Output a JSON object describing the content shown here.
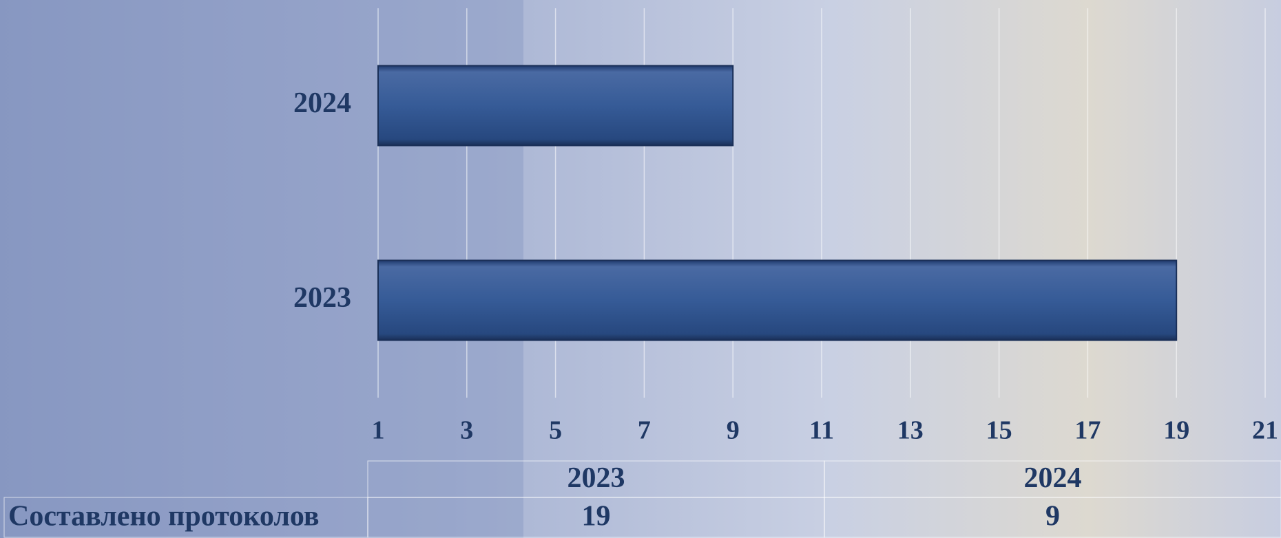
{
  "chart_data": {
    "type": "hbar",
    "categories": [
      "2023",
      "2024"
    ],
    "values": [
      19,
      9
    ],
    "color": "#2f5597",
    "xlim": [
      1,
      21
    ],
    "xticks": [
      1,
      3,
      5,
      7,
      9,
      11,
      13,
      15,
      17,
      19,
      21
    ],
    "grid": true,
    "table": {
      "columns": [
        "2023",
        "2024"
      ],
      "rows": [
        {
          "label": "Составлено протоколов",
          "values": [
            19,
            9
          ]
        }
      ]
    }
  }
}
